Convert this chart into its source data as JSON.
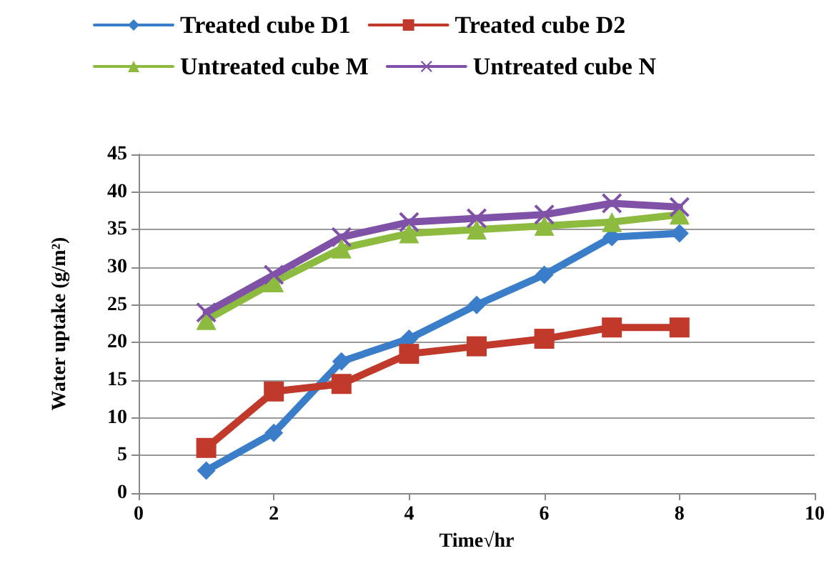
{
  "chart_data": {
    "type": "line",
    "xlabel": "Time√hr",
    "ylabel": "Water uptake (g/m²)",
    "x": [
      1,
      2,
      3,
      4,
      5,
      6,
      7,
      8
    ],
    "series": [
      {
        "name": "Treated cube D1",
        "color": "#3a7dc9",
        "marker": "diamond",
        "values": [
          3,
          8,
          17.5,
          20.5,
          25,
          29,
          34,
          34.5
        ]
      },
      {
        "name": "Treated cube D2",
        "color": "#c0392b",
        "marker": "square",
        "values": [
          6,
          13.5,
          14.5,
          18.5,
          19.5,
          20.5,
          22,
          22
        ]
      },
      {
        "name": "Untreated cube M",
        "color": "#8dbb3f",
        "marker": "triangle",
        "values": [
          23,
          28,
          32.5,
          34.5,
          35,
          35.5,
          36,
          37
        ]
      },
      {
        "name": "Untreated cube N",
        "color": "#7f52a8",
        "marker": "cross",
        "values": [
          24,
          29,
          34,
          36,
          36.5,
          37,
          38.5,
          38
        ]
      }
    ],
    "xlim": [
      0,
      10
    ],
    "xticks": [
      0,
      2,
      4,
      6,
      8,
      10
    ],
    "ylim": [
      0,
      45
    ],
    "yticks": [
      0,
      5,
      10,
      15,
      20,
      25,
      30,
      35,
      40,
      45
    ],
    "grid": "y",
    "legend": "top"
  }
}
